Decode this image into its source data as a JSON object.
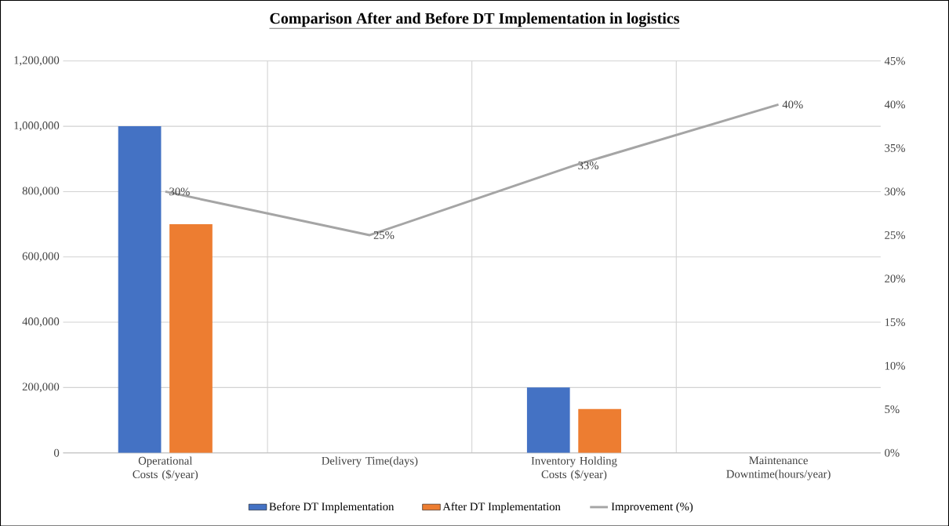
{
  "chart_data": {
    "type": "bar",
    "title": "Comparison After and Before DT Implementation in logistics",
    "categories": [
      "Operational Costs ($/year)",
      "Delivery Time(days)",
      "Inventory Holding Costs ($/year)",
      "Maintenance Downtime(hours/year)"
    ],
    "series": [
      {
        "name": "Before DT Implementation",
        "color": "#4472c4",
        "values": [
          1000000,
          0,
          200000,
          0
        ]
      },
      {
        "name": "After DT Implementation",
        "color": "#ed7d31",
        "values": [
          700000,
          0,
          134000,
          0
        ]
      },
      {
        "name": "Improvement (%)",
        "type": "line",
        "axis": "y2",
        "color": "#a5a5a5",
        "values": [
          30,
          25,
          33,
          40
        ],
        "value_labels": [
          "30%",
          "25%",
          "33%",
          "40%"
        ]
      }
    ],
    "ylim": [
      0,
      1200000
    ],
    "yticks": [
      {
        "value": 0,
        "label": "0"
      },
      {
        "value": 200000,
        "label": "200,000"
      },
      {
        "value": 400000,
        "label": "400,000"
      },
      {
        "value": 600000,
        "label": "600,000"
      },
      {
        "value": 800000,
        "label": "800,000"
      },
      {
        "value": 1000000,
        "label": "1,000,000"
      },
      {
        "value": 1200000,
        "label": "1,200,000"
      }
    ],
    "y2lim": [
      0,
      45
    ],
    "y2ticks": [
      {
        "value": 0,
        "label": "0%"
      },
      {
        "value": 5,
        "label": "5%"
      },
      {
        "value": 10,
        "label": "10%"
      },
      {
        "value": 15,
        "label": "15%"
      },
      {
        "value": 20,
        "label": "20%"
      },
      {
        "value": 25,
        "label": "25%"
      },
      {
        "value": 30,
        "label": "30%"
      },
      {
        "value": 35,
        "label": "35%"
      },
      {
        "value": 40,
        "label": "40%"
      },
      {
        "value": 45,
        "label": "45%"
      }
    ],
    "grid": true,
    "legend": "bottom",
    "marker": "none"
  }
}
